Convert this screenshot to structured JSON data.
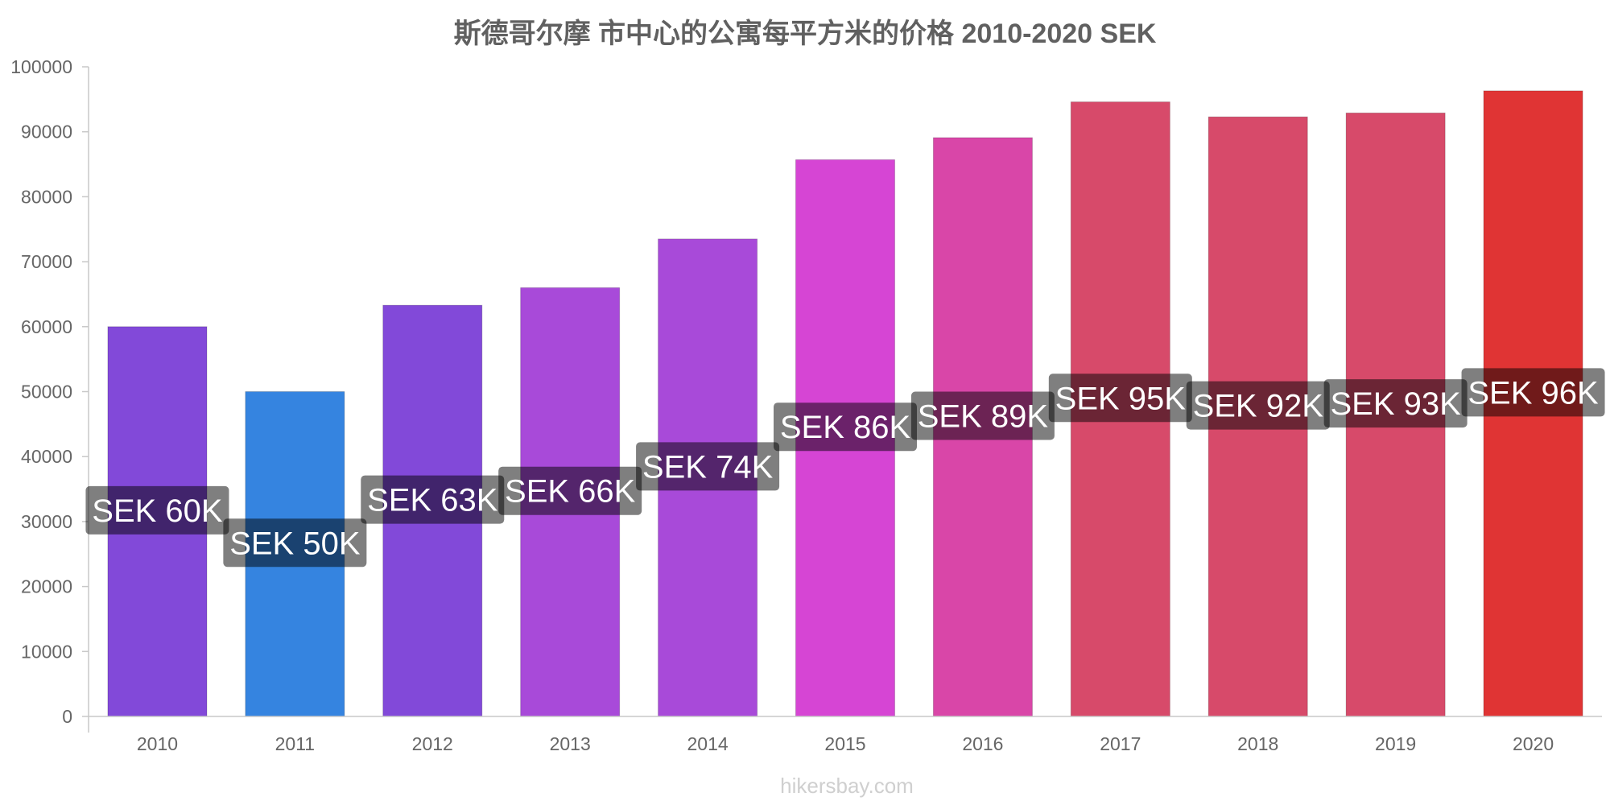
{
  "chart_data": {
    "type": "bar",
    "title": "斯德哥尔摩 市中心的公寓每平方米的价格 2010-2020 SEK",
    "categories": [
      "2010",
      "2011",
      "2012",
      "2013",
      "2014",
      "2015",
      "2016",
      "2017",
      "2018",
      "2019",
      "2020"
    ],
    "values": [
      60000,
      50000,
      63300,
      66000,
      73500,
      85700,
      89100,
      94600,
      92300,
      92900,
      96300
    ],
    "data_labels": [
      "SEK 60K",
      "SEK 50K",
      "SEK 63K",
      "SEK 66K",
      "SEK 74K",
      "SEK 86K",
      "SEK 89K",
      "SEK 95K",
      "SEK 92K",
      "SEK 93K",
      "SEK 96K"
    ],
    "colors": [
      "#8249d9",
      "#3584e0",
      "#8249d9",
      "#a84ad9",
      "#a84ad9",
      "#d645d4",
      "#d946a8",
      "#d74a6a",
      "#d74a6a",
      "#d74a6a",
      "#e03434"
    ],
    "ylim": [
      0,
      100000
    ],
    "yticks": [
      "0",
      "10000",
      "20000",
      "30000",
      "40000",
      "50000",
      "60000",
      "70000",
      "80000",
      "90000",
      "100000"
    ],
    "xlabel": "",
    "ylabel": "",
    "grid": false,
    "legend": "none"
  },
  "footer": "hikersbay.com"
}
